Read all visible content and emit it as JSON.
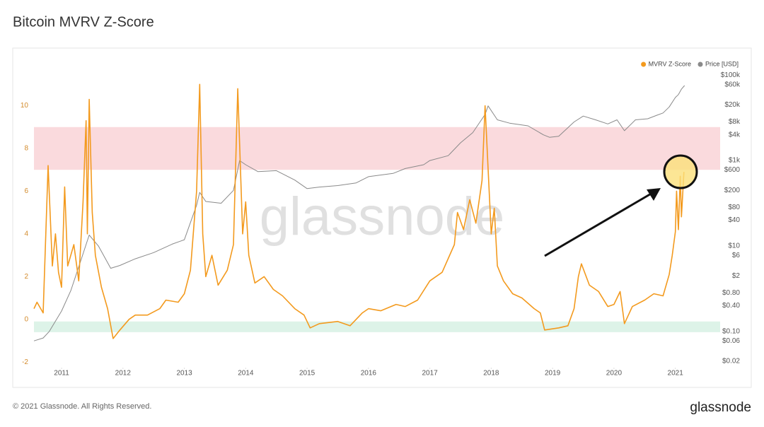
{
  "chart_data": {
    "type": "line",
    "title": "Bitcoin MVRV Z-Score",
    "watermark": "glassnode",
    "footer": "© 2021 Glassnode. All Rights Reserved.",
    "logo": "glassnode",
    "xlim": [
      2010.55,
      2021.73
    ],
    "xticks": [
      2011,
      2012,
      2013,
      2014,
      2015,
      2016,
      2017,
      2018,
      2019,
      2020,
      2021
    ],
    "ylim": [
      -2.26,
      11.64
    ],
    "yticks": [
      -2,
      0,
      2,
      4,
      6,
      8,
      10
    ],
    "y2lim": [
      0.0142,
      127000
    ],
    "y2scale": "log",
    "y2ticks": [
      {
        "value": 100000,
        "label": "$100k"
      },
      {
        "value": 60000,
        "label": "$60k"
      },
      {
        "value": 20000,
        "label": "$20k"
      },
      {
        "value": 8000,
        "label": "$8k"
      },
      {
        "value": 4000,
        "label": "$4k"
      },
      {
        "value": 1000,
        "label": "$1k"
      },
      {
        "value": 600,
        "label": "$600"
      },
      {
        "value": 200,
        "label": "$200"
      },
      {
        "value": 80,
        "label": "$80"
      },
      {
        "value": 40,
        "label": "$40"
      },
      {
        "value": 10,
        "label": "$10"
      },
      {
        "value": 6,
        "label": "$6"
      },
      {
        "value": 2,
        "label": "$2"
      },
      {
        "value": 0.8,
        "label": "$0.80"
      },
      {
        "value": 0.4,
        "label": "$0.40"
      },
      {
        "value": 0.1,
        "label": "$0.10"
      },
      {
        "value": 0.06,
        "label": "$0.06"
      },
      {
        "value": 0.02,
        "label": "$0.02"
      }
    ],
    "legend_position": "top-right",
    "bands": [
      {
        "from": 7,
        "to": 9,
        "color": "#fadadd"
      },
      {
        "from": -0.6,
        "to": -0.1,
        "color": "#ddf3e8"
      }
    ],
    "series": [
      {
        "name": "MVRV Z-Score",
        "color": "#f39a1e",
        "x": [
          2010.55,
          2010.6,
          2010.7,
          2010.78,
          2010.85,
          2010.9,
          2010.95,
          2011.0,
          2011.05,
          2011.1,
          2011.2,
          2011.28,
          2011.35,
          2011.4,
          2011.42,
          2011.45,
          2011.5,
          2011.55,
          2011.65,
          2011.75,
          2011.84,
          2011.95,
          2012.1,
          2012.2,
          2012.4,
          2012.6,
          2012.7,
          2012.9,
          2013.0,
          2013.1,
          2013.2,
          2013.25,
          2013.3,
          2013.35,
          2013.45,
          2013.55,
          2013.7,
          2013.8,
          2013.87,
          2013.95,
          2014.0,
          2014.05,
          2014.15,
          2014.3,
          2014.45,
          2014.6,
          2014.8,
          2014.95,
          2015.05,
          2015.2,
          2015.5,
          2015.7,
          2015.9,
          2016.0,
          2016.2,
          2016.45,
          2016.6,
          2016.8,
          2017.0,
          2017.2,
          2017.4,
          2017.45,
          2017.55,
          2017.65,
          2017.75,
          2017.85,
          2017.9,
          2018.0,
          2018.05,
          2018.1,
          2018.2,
          2018.35,
          2018.5,
          2018.7,
          2018.8,
          2018.87,
          2019.1,
          2019.25,
          2019.35,
          2019.42,
          2019.47,
          2019.6,
          2019.75,
          2019.9,
          2020.0,
          2020.1,
          2020.17,
          2020.3,
          2020.5,
          2020.65,
          2020.8,
          2020.9,
          2020.95,
          2021.0,
          2021.02,
          2021.05,
          2021.08,
          2021.1,
          2021.14
        ],
        "values": [
          0.5,
          0.8,
          0.3,
          7.2,
          2.5,
          4,
          2.2,
          1.5,
          6.2,
          2.5,
          3.5,
          1.8,
          5.5,
          9.3,
          4,
          10.3,
          5,
          3,
          1.5,
          0.5,
          -0.9,
          -0.5,
          0,
          0.2,
          0.2,
          0.5,
          0.9,
          0.8,
          1.2,
          2.3,
          6,
          11,
          4,
          2,
          3,
          1.6,
          2.3,
          3.5,
          10.8,
          4,
          5.5,
          3,
          1.7,
          2,
          1.4,
          1.1,
          0.5,
          0.2,
          -0.4,
          -0.2,
          -0.1,
          -0.3,
          0.3,
          0.5,
          0.4,
          0.7,
          0.6,
          0.9,
          1.8,
          2.2,
          3.5,
          5,
          4.2,
          5.6,
          4.5,
          6.5,
          10,
          4,
          5.2,
          2.5,
          1.8,
          1.2,
          1,
          0.5,
          0.3,
          -0.5,
          -0.4,
          -0.3,
          0.5,
          2,
          2.6,
          1.6,
          1.3,
          0.6,
          0.7,
          1.3,
          -0.2,
          0.6,
          0.9,
          1.2,
          1.1,
          2.1,
          3,
          4.1,
          6,
          4.2,
          6.7,
          4.8,
          6.9
        ]
      },
      {
        "name": "Price [USD]",
        "color": "#8a8a8a",
        "axis": "y2",
        "x": [
          2010.55,
          2010.7,
          2010.8,
          2011.0,
          2011.15,
          2011.3,
          2011.45,
          2011.6,
          2011.8,
          2011.95,
          2012.2,
          2012.5,
          2012.8,
          2013.0,
          2013.2,
          2013.25,
          2013.35,
          2013.6,
          2013.8,
          2013.9,
          2014.0,
          2014.2,
          2014.5,
          2014.8,
          2015.0,
          2015.2,
          2015.5,
          2015.8,
          2016.0,
          2016.4,
          2016.6,
          2016.9,
          2017.0,
          2017.3,
          2017.5,
          2017.7,
          2017.9,
          2017.95,
          2018.1,
          2018.3,
          2018.6,
          2018.85,
          2018.95,
          2019.1,
          2019.35,
          2019.5,
          2019.7,
          2019.9,
          2020.05,
          2020.17,
          2020.35,
          2020.55,
          2020.7,
          2020.8,
          2020.9,
          2021.0,
          2021.05,
          2021.1,
          2021.15
        ],
        "values": [
          0.06,
          0.07,
          0.1,
          0.3,
          0.9,
          4,
          18,
          10,
          3,
          3.5,
          5,
          7,
          11,
          14,
          90,
          180,
          110,
          100,
          200,
          1000,
          800,
          550,
          580,
          350,
          220,
          240,
          260,
          300,
          420,
          500,
          650,
          800,
          1000,
          1300,
          2600,
          4500,
          12000,
          19000,
          9000,
          7500,
          6500,
          4000,
          3500,
          3700,
          8000,
          11000,
          9000,
          7200,
          9000,
          5000,
          9000,
          9500,
          11500,
          13000,
          18000,
          30000,
          35000,
          47000,
          57000
        ]
      }
    ]
  }
}
